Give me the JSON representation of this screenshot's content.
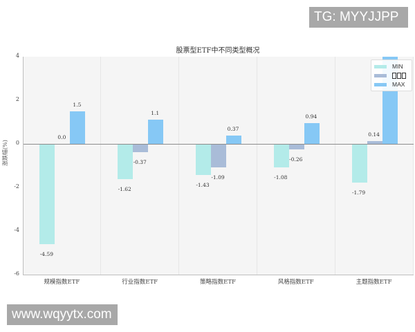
{
  "watermarks": {
    "top_right": "TG: MYYJJPP",
    "bottom_left": "www.wqyytx.com"
  },
  "colors": {
    "min": "#b3ebe9",
    "mid": "#a9bcd8",
    "max": "#86c8f5",
    "plot_bg": "#f5f5f5",
    "zero_line": "#8c8c8c"
  },
  "chart_data": {
    "type": "bar",
    "title": "股票型ETF中不同类型概况",
    "xlabel": "",
    "ylabel": "涨跌幅(%)",
    "ylim": [
      -6,
      4
    ],
    "yticks": [
      "4",
      "2",
      "0",
      "-2",
      "-4",
      "-6"
    ],
    "categories": [
      "规模指数ETF",
      "行业指数ETF",
      "策略指数ETF",
      "风格指数ETF",
      "主题指数ETF"
    ],
    "series": [
      {
        "name": "MIN",
        "values": [
          -4.59,
          -1.62,
          -1.43,
          -1.08,
          -1.79
        ],
        "labels": [
          "-4.59",
          "-1.62",
          "-1.43",
          "-1.08",
          "-1.79"
        ]
      },
      {
        "name": "□□□",
        "values": [
          0.0,
          -0.37,
          -1.09,
          -0.26,
          0.14
        ],
        "labels": [
          "0.0",
          "-0.37",
          "-1.09",
          "-0.26",
          "0.14"
        ]
      },
      {
        "name": "MAX",
        "values": [
          1.5,
          1.1,
          0.37,
          0.94,
          4.5
        ],
        "labels": [
          "1.5",
          "1.1",
          "0.37",
          "0.94",
          ""
        ]
      }
    ],
    "grid": {
      "x": true,
      "y": false
    },
    "legend": {
      "position": "upper right",
      "entries": [
        "MIN",
        "□□□",
        "MAX"
      ]
    },
    "annotations": "Middle legend label renders as missing-glyph boxes; MAX bar for 主题指数ETF exceeds the top of the axis and is clipped without a label."
  }
}
